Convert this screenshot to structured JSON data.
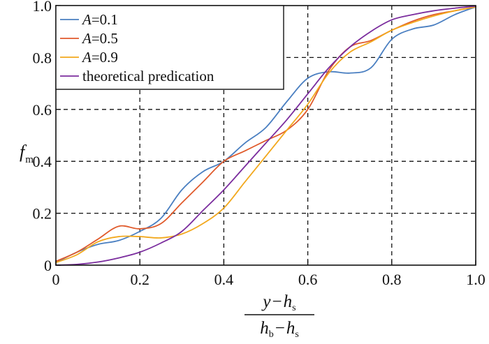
{
  "chart_data": {
    "type": "line",
    "xlim": [
      0,
      1
    ],
    "ylim": [
      0,
      1
    ],
    "xticks": [
      "0",
      "0.2",
      "0.4",
      "0.6",
      "0.8",
      "1.0"
    ],
    "yticks": [
      "0",
      "0.2",
      "0.4",
      "0.6",
      "0.8",
      "1.0"
    ],
    "grid": true,
    "legend_position": "top-left",
    "ylabel": {
      "main": "f",
      "sub": "m"
    },
    "xlabel": {
      "numerator": {
        "a": "y",
        "op": "−",
        "b": "h",
        "b_sub": "s"
      },
      "denominator": {
        "a": "h",
        "a_sub": "b",
        "op": "−",
        "b": "h",
        "b_sub": "s"
      }
    },
    "series": [
      {
        "name": "A=0.1",
        "label_italic": "A",
        "label_rest": "=0.1",
        "color": "#4a7fc1",
        "x": [
          0,
          0.05,
          0.1,
          0.15,
          0.2,
          0.25,
          0.3,
          0.35,
          0.4,
          0.45,
          0.5,
          0.55,
          0.6,
          0.65,
          0.7,
          0.75,
          0.8,
          0.85,
          0.9,
          0.95,
          1.0
        ],
        "y": [
          0.01,
          0.05,
          0.08,
          0.095,
          0.13,
          0.18,
          0.29,
          0.36,
          0.4,
          0.47,
          0.53,
          0.63,
          0.72,
          0.745,
          0.74,
          0.76,
          0.87,
          0.91,
          0.925,
          0.965,
          0.995
        ]
      },
      {
        "name": "A=0.5",
        "label_italic": "A",
        "label_rest": "=0.5",
        "color": "#e05a2b",
        "x": [
          0,
          0.05,
          0.1,
          0.15,
          0.2,
          0.25,
          0.3,
          0.35,
          0.4,
          0.45,
          0.5,
          0.55,
          0.6,
          0.65,
          0.7,
          0.75,
          0.8,
          0.85,
          0.9,
          0.95,
          1.0
        ],
        "y": [
          0.015,
          0.05,
          0.1,
          0.15,
          0.14,
          0.16,
          0.24,
          0.32,
          0.4,
          0.44,
          0.48,
          0.52,
          0.6,
          0.75,
          0.84,
          0.865,
          0.905,
          0.94,
          0.965,
          0.98,
          0.995
        ]
      },
      {
        "name": "A=0.9",
        "label_italic": "A",
        "label_rest": "=0.9",
        "color": "#f2a81d",
        "x": [
          0,
          0.05,
          0.1,
          0.15,
          0.2,
          0.25,
          0.3,
          0.35,
          0.4,
          0.45,
          0.5,
          0.55,
          0.6,
          0.65,
          0.7,
          0.75,
          0.8,
          0.85,
          0.9,
          0.95,
          1.0
        ],
        "y": [
          0.01,
          0.04,
          0.09,
          0.11,
          0.11,
          0.105,
          0.12,
          0.16,
          0.22,
          0.32,
          0.42,
          0.52,
          0.62,
          0.74,
          0.82,
          0.86,
          0.905,
          0.935,
          0.96,
          0.98,
          0.995
        ]
      },
      {
        "name": "theoretical predication",
        "label_italic": "",
        "label_rest": "theoretical predication",
        "color": "#7b2d9e",
        "x": [
          0,
          0.05,
          0.1,
          0.15,
          0.2,
          0.25,
          0.3,
          0.35,
          0.4,
          0.45,
          0.5,
          0.55,
          0.6,
          0.65,
          0.7,
          0.75,
          0.8,
          0.85,
          0.9,
          0.95,
          1.0
        ],
        "y": [
          0.0,
          0.003,
          0.012,
          0.028,
          0.05,
          0.085,
          0.13,
          0.21,
          0.29,
          0.38,
          0.47,
          0.56,
          0.66,
          0.76,
          0.84,
          0.9,
          0.945,
          0.965,
          0.98,
          0.99,
          0.998
        ]
      }
    ]
  }
}
